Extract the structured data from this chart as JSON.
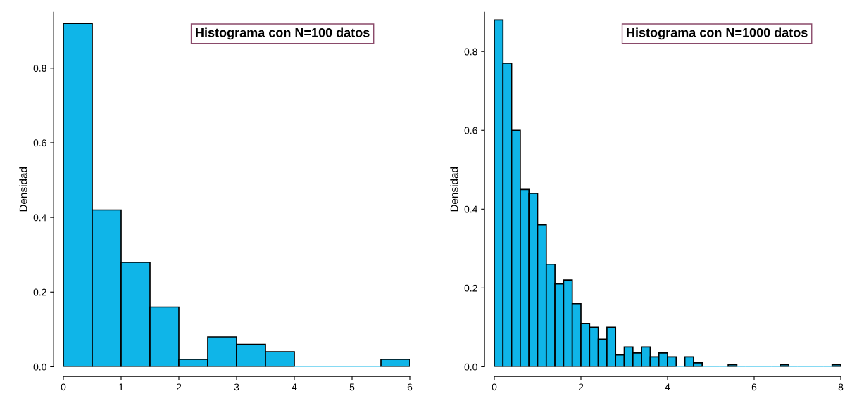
{
  "chart_data": [
    {
      "type": "histogram",
      "title": "Histograma con N=100 datos",
      "ylabel": "Densidad",
      "color": "#0fb5e8",
      "bins": [
        0,
        0.5,
        1,
        1.5,
        2,
        2.5,
        3,
        3.5,
        4,
        4.5,
        5,
        5.5,
        6
      ],
      "values": [
        0.92,
        0.42,
        0.28,
        0.16,
        0.02,
        0.08,
        0.06,
        0.04,
        0,
        0,
        0,
        0.02
      ],
      "xlim": [
        0,
        6
      ],
      "xticks": [
        0,
        1,
        2,
        3,
        4,
        5,
        6
      ],
      "ylim": [
        0,
        0.95
      ],
      "yticks": [
        {
          "value": 0,
          "label": "0.0"
        },
        0.2,
        0.4,
        0.6,
        0.8
      ],
      "grid": false
    },
    {
      "type": "histogram",
      "title": "Histograma con N=1000 datos",
      "ylabel": "Densidad",
      "color": "#0fb5e8",
      "bins": [
        0,
        0.2,
        0.4,
        0.6,
        0.8,
        1.0,
        1.2,
        1.4,
        1.6,
        1.8,
        2.0,
        2.2,
        2.4,
        2.6,
        2.8,
        3.0,
        3.2,
        3.4,
        3.6,
        3.8,
        4.0,
        4.2,
        4.4,
        4.6,
        4.8,
        5.0,
        5.2,
        5.4,
        5.6,
        5.8,
        6.0,
        6.2,
        6.4,
        6.6,
        6.8,
        7.0,
        7.2,
        7.4,
        7.6,
        7.8,
        8.0
      ],
      "values": [
        0.88,
        0.77,
        0.6,
        0.45,
        0.44,
        0.36,
        0.26,
        0.21,
        0.22,
        0.16,
        0.11,
        0.1,
        0.07,
        0.1,
        0.03,
        0.05,
        0.035,
        0.05,
        0.025,
        0.035,
        0.025,
        0,
        0.025,
        0.01,
        0,
        0,
        0,
        0.005,
        0,
        0,
        0,
        0,
        0,
        0.005,
        0,
        0,
        0,
        0,
        0,
        0.005
      ],
      "xlim": [
        0,
        8
      ],
      "xticks": [
        0,
        2,
        4,
        6,
        8
      ],
      "ylim": [
        0,
        0.9
      ],
      "yticks": [
        {
          "value": 0,
          "label": "0.0"
        },
        0.2,
        0.4,
        0.6,
        0.8
      ],
      "grid": false
    }
  ]
}
